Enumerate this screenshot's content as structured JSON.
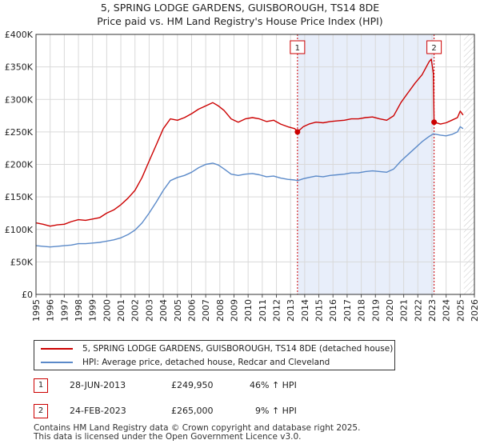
{
  "chart_data": {
    "type": "line",
    "title": "5, SPRING LODGE GARDENS, GUISBOROUGH, TS14 8DE",
    "subtitle": "Price paid vs. HM Land Registry's House Price Index (HPI)",
    "xlim": [
      1995,
      2026
    ],
    "ylim": [
      0,
      400000
    ],
    "x_ticks": [
      "1995",
      "1996",
      "1997",
      "1998",
      "1999",
      "2000",
      "2001",
      "2002",
      "2003",
      "2004",
      "2005",
      "2006",
      "2007",
      "2008",
      "2009",
      "2010",
      "2011",
      "2012",
      "2013",
      "2014",
      "2015",
      "2016",
      "2017",
      "2018",
      "2019",
      "2020",
      "2021",
      "2022",
      "2023",
      "2024",
      "2025",
      "2026"
    ],
    "y_ticks": [
      {
        "value": 0,
        "label": "£0"
      },
      {
        "value": 50000,
        "label": "£50K"
      },
      {
        "value": 100000,
        "label": "£100K"
      },
      {
        "value": 150000,
        "label": "£150K"
      },
      {
        "value": 200000,
        "label": "£200K"
      },
      {
        "value": 250000,
        "label": "£250K"
      },
      {
        "value": 300000,
        "label": "£300K"
      },
      {
        "value": 350000,
        "label": "£350K"
      },
      {
        "value": 400000,
        "label": "£400K"
      }
    ],
    "grid": true,
    "shaded_range": [
      2013.49,
      2023.15
    ],
    "colors": {
      "property": "#cc0000",
      "hpi": "#5b8ac9",
      "shade": "#e8eefa",
      "grid": "#d9d9d9",
      "marker_line": "#cc0000"
    },
    "series": [
      {
        "name": "5, SPRING LODGE GARDENS, GUISBOROUGH, TS14 8DE (detached house)",
        "color": "#cc0000",
        "x": [
          1995.0,
          1995.5,
          1996.0,
          1996.5,
          1997.0,
          1997.5,
          1998.0,
          1998.5,
          1999.0,
          1999.5,
          2000.0,
          2000.5,
          2001.0,
          2001.5,
          2002.0,
          2002.5,
          2003.0,
          2003.5,
          2004.0,
          2004.5,
          2005.0,
          2005.5,
          2006.0,
          2006.5,
          2007.0,
          2007.5,
          2007.9,
          2008.3,
          2008.8,
          2009.3,
          2009.8,
          2010.3,
          2010.8,
          2011.3,
          2011.8,
          2012.3,
          2012.8,
          2013.3,
          2013.49,
          2013.9,
          2014.3,
          2014.8,
          2015.3,
          2015.8,
          2016.3,
          2016.8,
          2017.3,
          2017.8,
          2018.3,
          2018.8,
          2019.3,
          2019.8,
          2020.3,
          2020.8,
          2021.3,
          2021.8,
          2022.3,
          2022.8,
          2022.95,
          2023.1,
          2023.15,
          2023.6,
          2024.0,
          2024.4,
          2024.8,
          2025.0,
          2025.2
        ],
        "values": [
          110000,
          108000,
          105000,
          107000,
          108000,
          112000,
          115000,
          114000,
          116000,
          118000,
          125000,
          130000,
          138000,
          148000,
          160000,
          180000,
          205000,
          230000,
          255000,
          270000,
          268000,
          272000,
          278000,
          285000,
          290000,
          295000,
          290000,
          283000,
          270000,
          265000,
          270000,
          272000,
          270000,
          266000,
          268000,
          262000,
          258000,
          255000,
          249950,
          258000,
          262000,
          265000,
          264000,
          266000,
          267000,
          268000,
          270000,
          270000,
          272000,
          273000,
          270000,
          268000,
          275000,
          295000,
          310000,
          325000,
          338000,
          358000,
          362000,
          340000,
          265000,
          262000,
          264000,
          268000,
          272000,
          282000,
          276000
        ]
      },
      {
        "name": "HPI: Average price, detached house, Redcar and Cleveland",
        "color": "#5b8ac9",
        "x": [
          1995.0,
          1995.5,
          1996.0,
          1996.5,
          1997.0,
          1997.5,
          1998.0,
          1998.5,
          1999.0,
          1999.5,
          2000.0,
          2000.5,
          2001.0,
          2001.5,
          2002.0,
          2002.5,
          2003.0,
          2003.5,
          2004.0,
          2004.5,
          2005.0,
          2005.5,
          2006.0,
          2006.5,
          2007.0,
          2007.5,
          2007.9,
          2008.3,
          2008.8,
          2009.3,
          2009.8,
          2010.3,
          2010.8,
          2011.3,
          2011.8,
          2012.3,
          2012.8,
          2013.3,
          2013.49,
          2013.9,
          2014.3,
          2014.8,
          2015.3,
          2015.8,
          2016.3,
          2016.8,
          2017.3,
          2017.8,
          2018.3,
          2018.8,
          2019.3,
          2019.8,
          2020.3,
          2020.8,
          2021.3,
          2021.8,
          2022.3,
          2022.8,
          2023.1,
          2023.6,
          2024.0,
          2024.4,
          2024.8,
          2025.0,
          2025.2
        ],
        "values": [
          75000,
          74000,
          73000,
          74000,
          75000,
          76000,
          78000,
          78000,
          79000,
          80000,
          82000,
          84000,
          87000,
          92000,
          99000,
          110000,
          125000,
          142000,
          160000,
          175000,
          180000,
          183000,
          188000,
          195000,
          200000,
          202000,
          199000,
          193000,
          185000,
          183000,
          185000,
          186000,
          184000,
          181000,
          182000,
          179000,
          177000,
          176000,
          175000,
          178000,
          180000,
          182000,
          181000,
          183000,
          184000,
          185000,
          187000,
          187000,
          189000,
          190000,
          189000,
          188000,
          193000,
          205000,
          215000,
          225000,
          235000,
          243000,
          247000,
          245000,
          244000,
          246000,
          250000,
          258000,
          255000
        ]
      }
    ],
    "annotations": [
      {
        "label": "1",
        "x": 2013.49,
        "value": 249950
      },
      {
        "label": "2",
        "x": 2023.15,
        "value": 265000
      }
    ]
  },
  "legend": {
    "property_label": "5, SPRING LODGE GARDENS, GUISBOROUGH, TS14 8DE (detached house)",
    "hpi_label": "HPI: Average price, detached house, Redcar and Cleveland"
  },
  "sales": [
    {
      "num": "1",
      "date": "28-JUN-2013",
      "price": "£249,950",
      "hpi": "46% ↑ HPI"
    },
    {
      "num": "2",
      "date": "24-FEB-2023",
      "price": "£265,000",
      "hpi": "9% ↑ HPI"
    }
  ],
  "footer": {
    "line1": "Contains HM Land Registry data © Crown copyright and database right 2025.",
    "line2": "This data is licensed under the Open Government Licence v3.0."
  }
}
